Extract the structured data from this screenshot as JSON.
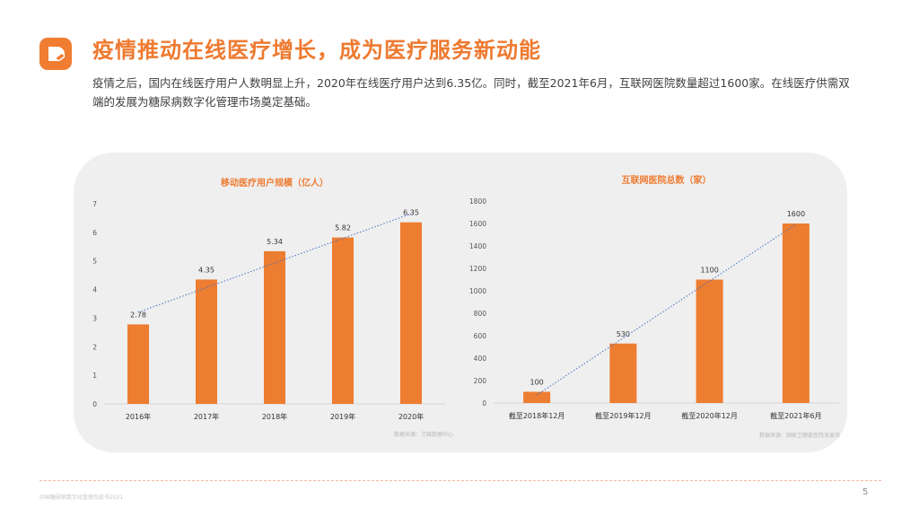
{
  "title": "疫情推动在线医疗增长，成为医疗服务新动能",
  "description": "疫情之后，国内在线医疗用户人数明显上升，2020年在线医疗用户达到6.35亿。同时，截至2021年6月，互联网医院数量超过1600家。在线医疗供需双端的发展为糖尿病数字化管理市场奠定基础。",
  "colors": {
    "accent": "#EE7A30",
    "bar": "#ED7D31",
    "trendline": "#4472C4"
  },
  "icons": {
    "logo": "pill-logo-icon"
  },
  "chart_data": [
    {
      "type": "bar",
      "title": "移动医疗用户规模（亿人）",
      "categories": [
        "2016年",
        "2017年",
        "2018年",
        "2019年",
        "2020年"
      ],
      "values": [
        2.78,
        4.35,
        5.34,
        5.82,
        6.35
      ],
      "value_labels": [
        "2.78",
        "4.35",
        "5.34",
        "5.82",
        "6.35"
      ],
      "yticks": [
        "0",
        "1",
        "2",
        "3",
        "4",
        "5",
        "6",
        "7"
      ],
      "ylim": [
        0,
        7
      ],
      "trendline": "linear",
      "source": "数据来源：艾媒数据中心"
    },
    {
      "type": "bar",
      "title": "互联网医院总数（家）",
      "categories": [
        "截至2018年12月",
        "截至2019年12月",
        "截至2020年12月",
        "截至2021年6月"
      ],
      "values": [
        100,
        530,
        1100,
        1600
      ],
      "value_labels": [
        "100",
        "530",
        "1100",
        "1600"
      ],
      "yticks": [
        "0",
        "200",
        "400",
        "600",
        "800",
        "1000",
        "1200",
        "1400",
        "1600",
        "1800"
      ],
      "ylim": [
        0,
        1800
      ],
      "trendline": "linear",
      "source": "数据来源：国家卫健委医院发展司"
    }
  ],
  "footer": "中国糖尿病数字化管理白皮书2021",
  "page_number": "5"
}
